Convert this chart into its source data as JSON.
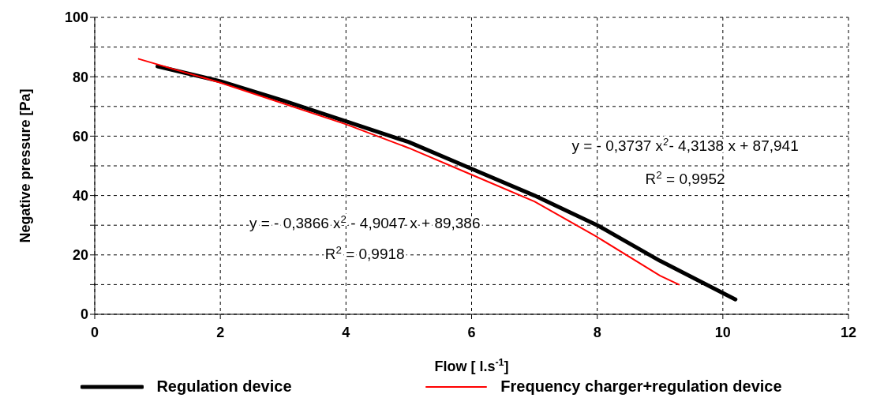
{
  "chart_data": {
    "type": "line",
    "xlabel": "Flow [ l.s$^{-1}$]",
    "ylabel": "Negative pressure [Pa]",
    "series": [
      {
        "name": "Regulation device",
        "color": "#000000",
        "x": [
          1,
          2,
          3,
          4,
          5,
          6,
          7,
          8,
          9,
          10.2
        ],
        "values": [
          83.5,
          78.5,
          72,
          65,
          58,
          49,
          40,
          30,
          18,
          5
        ]
      },
      {
        "name": "Frequency charger+regulation device",
        "color": "#ff0000",
        "x": [
          0.7,
          2,
          3,
          4,
          5,
          6,
          7,
          8,
          9,
          9.3
        ],
        "values": [
          86,
          78,
          71,
          64,
          56,
          47,
          38,
          26,
          13,
          10
        ]
      }
    ],
    "xlim": [
      0,
      12
    ],
    "xticks": [
      0,
      2,
      4,
      6,
      8,
      10,
      12
    ],
    "ylim": [
      0,
      100
    ],
    "yticks": [
      0,
      {
        "value": 10,
        "label": null
      },
      20,
      {
        "value": 30,
        "label": null
      },
      40,
      {
        "value": 50,
        "label": null
      },
      60,
      {
        "value": 70,
        "label": null
      },
      80,
      {
        "value": 90,
        "label": null
      },
      100
    ],
    "grid": true,
    "legend": "bottom",
    "marker": "none",
    "line_style": "solid",
    "annotations": [
      "y = - 0,3737 x$^{2}$- 4,3138 x + 87,941",
      "R$^{2}$ = 0,9952",
      "y = - 0,3866 x$^{2}$ - 4,9047 x + 89,386",
      "R$^{2}$  = 0,9918"
    ]
  }
}
